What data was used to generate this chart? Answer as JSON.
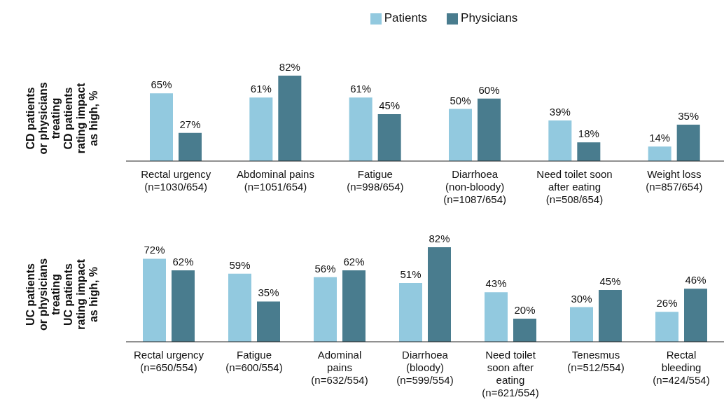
{
  "chart_data": [
    {
      "type": "bar",
      "ylabel": "CD patients\nor physicians\ntreating\nCD patients\nrating impact\nas high, %",
      "legend": "top",
      "categories": [
        "Rectal urgency\n(n=1030/654)",
        "Abdominal pains\n(n=1051/654)",
        "Fatigue\n(n=998/654)",
        "Diarrhoea\n(non-bloody)\n(n=1087/654)",
        "Need toilet soon\nafter eating\n(n=508/654)",
        "Weight loss\n(n=857/654)"
      ],
      "series": [
        {
          "name": "Patients",
          "color": "#92c9df",
          "values": [
            65,
            61,
            61,
            50,
            39,
            14
          ],
          "value_labels": [
            "65%",
            "61%",
            "61%",
            "50%",
            "39%",
            "14%"
          ]
        },
        {
          "name": "Physicians",
          "color": "#497c8e",
          "values": [
            27,
            82,
            45,
            60,
            18,
            35
          ],
          "value_labels": [
            "27%",
            "82%",
            "45%",
            "60%",
            "18%",
            "35%"
          ]
        }
      ]
    },
    {
      "type": "bar",
      "ylabel": "UC patients\nor physicians\ntreating\nUC patients\nrating impact\nas high, %",
      "categories": [
        "Rectal urgency\n(n=650/554)",
        "Fatigue\n(n=600/554)",
        "Adominal\npains\n(n=632/554)",
        "Diarrhoea\n(bloody)\n(n=599/554)",
        "Need toilet\nsoon after\neating\n(n=621/554)",
        "Tenesmus\n(n=512/554)",
        "Rectal\nbleeding\n(n=424/554)"
      ],
      "series": [
        {
          "color": "#92c9df",
          "values": [
            72,
            59,
            56,
            51,
            43,
            30,
            26
          ],
          "value_labels": [
            "72%",
            "59%",
            "56%",
            "51%",
            "43%",
            "30%",
            "26%"
          ]
        },
        {
          "color": "#497c8e",
          "values": [
            62,
            35,
            62,
            82,
            20,
            45,
            46
          ],
          "value_labels": [
            "62%",
            "35%",
            "62%",
            "82%",
            "20%",
            "45%",
            "46%"
          ]
        }
      ]
    }
  ]
}
